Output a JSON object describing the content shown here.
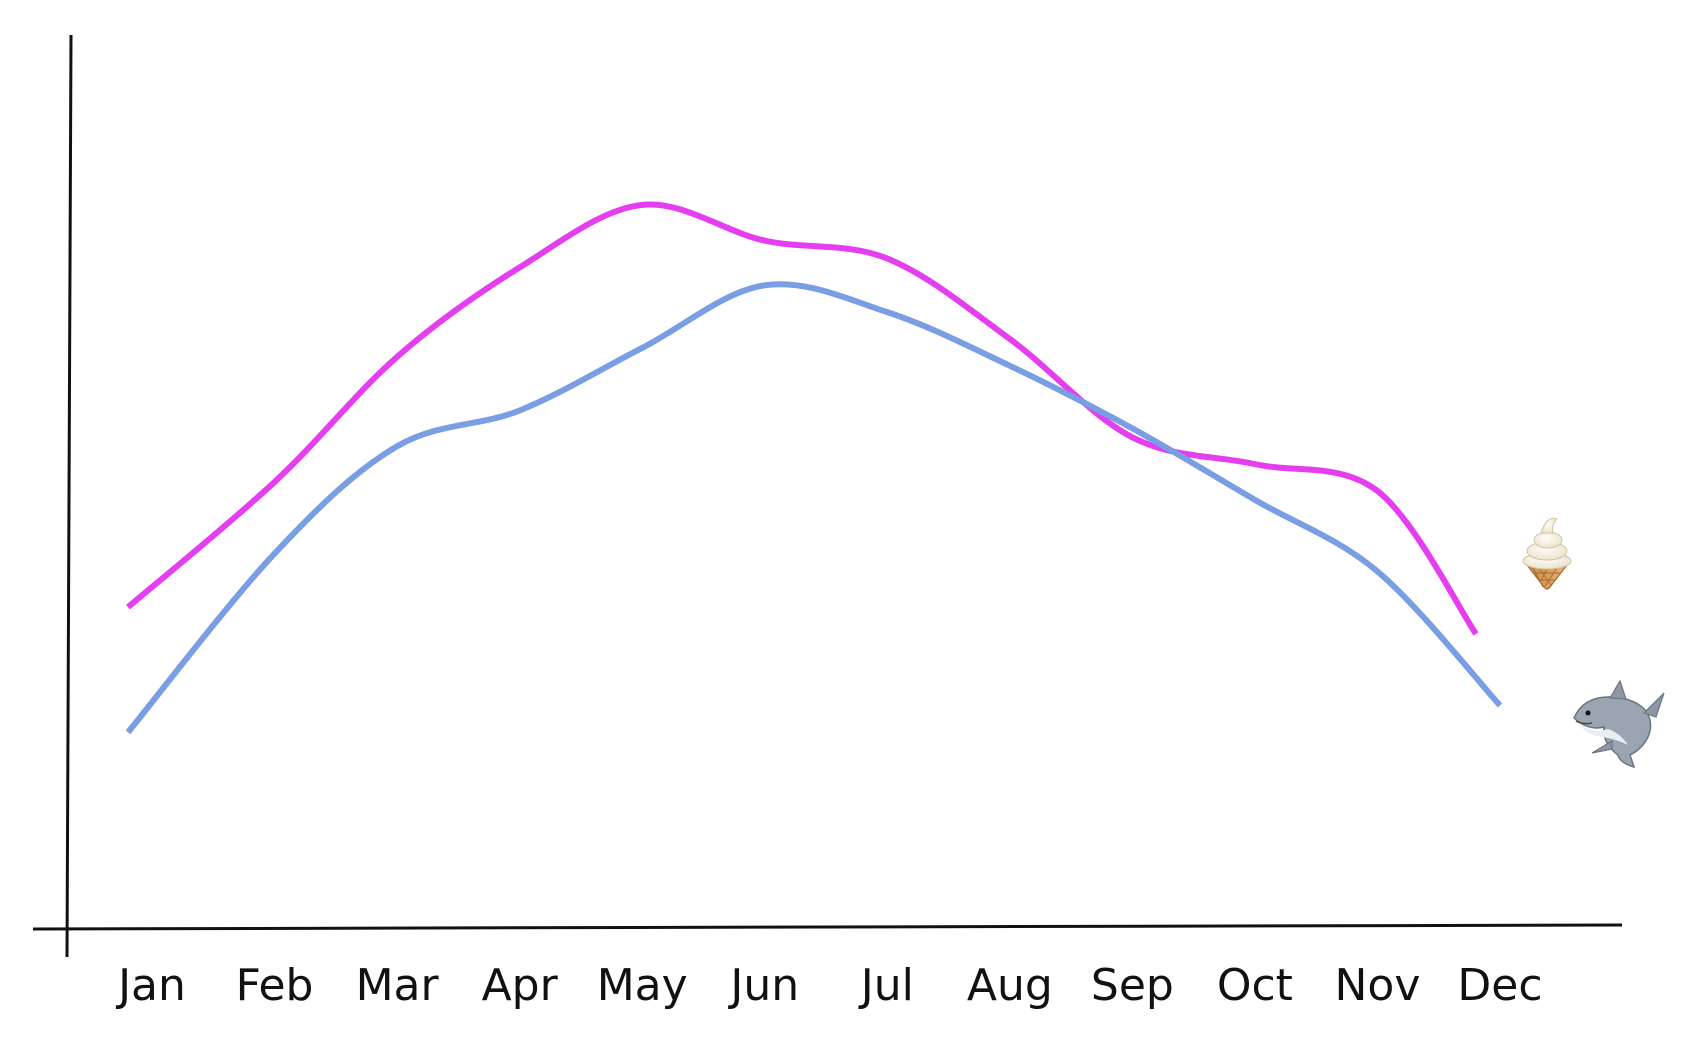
{
  "chart_data": {
    "type": "line",
    "title": "",
    "xlabel": "",
    "ylabel": "",
    "categories": [
      "Jan",
      "Feb",
      "Mar",
      "Apr",
      "May",
      "Jun",
      "Jul",
      "Aug",
      "Sep",
      "Oct",
      "Nov",
      "Dec"
    ],
    "ylim": [
      0,
      100
    ],
    "grid": false,
    "legend": "none",
    "series": [
      {
        "icon": "ice-cream-icon",
        "color": "#e53ef0",
        "values": [
          36,
          50,
          64,
          74,
          81,
          77,
          75,
          66,
          55,
          52,
          49,
          33
        ]
      },
      {
        "icon": "shark-icon",
        "color": "#7a9ee4",
        "values": [
          22,
          42,
          54,
          58,
          65,
          72,
          69,
          63,
          56,
          48,
          40,
          25
        ]
      }
    ]
  }
}
